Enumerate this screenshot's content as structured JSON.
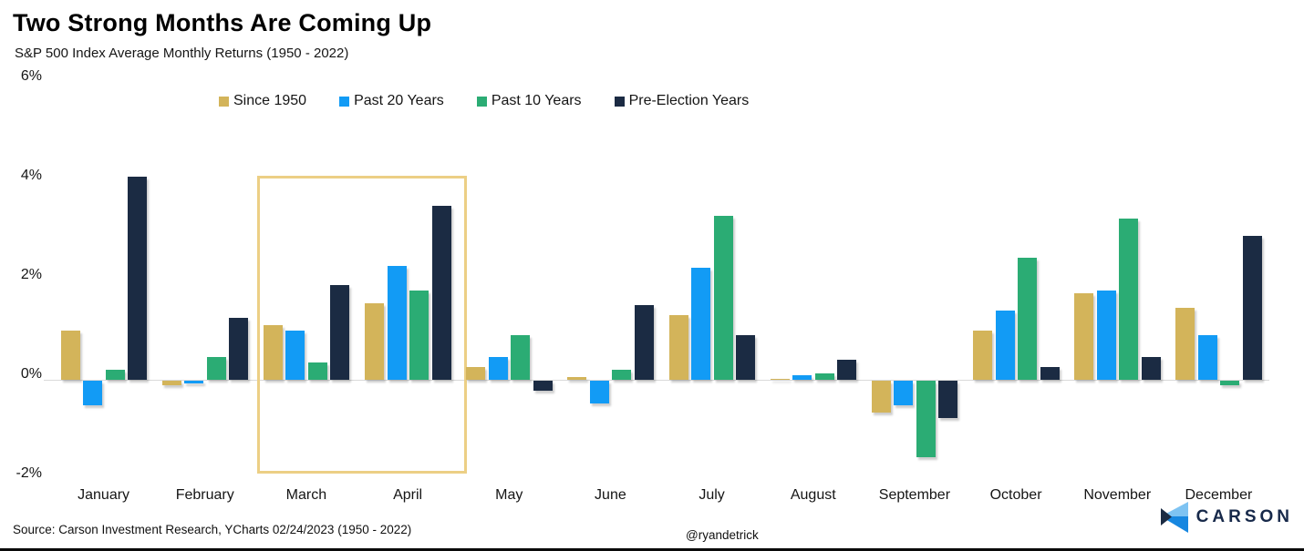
{
  "header": {
    "title": "Two Strong Months Are Coming Up",
    "subtitle": "S&P 500 Index Average Monthly Returns (1950 - 2022)"
  },
  "chart_data": {
    "type": "bar",
    "categories": [
      "January",
      "February",
      "March",
      "April",
      "May",
      "June",
      "July",
      "August",
      "September",
      "October",
      "November",
      "December"
    ],
    "series": [
      {
        "name": "Since 1950",
        "color": "#d3b45a",
        "values": [
          1.0,
          -0.1,
          1.1,
          1.55,
          0.25,
          0.05,
          1.3,
          0.02,
          -0.65,
          1.0,
          1.75,
          1.45
        ]
      },
      {
        "name": "Past 20 Years",
        "color": "#129bf5",
        "values": [
          -0.5,
          -0.05,
          1.0,
          2.3,
          0.45,
          -0.45,
          2.25,
          0.1,
          -0.5,
          1.4,
          1.8,
          0.9
        ]
      },
      {
        "name": "Past 10 Years",
        "color": "#2bac74",
        "values": [
          0.2,
          0.45,
          0.35,
          1.8,
          0.9,
          0.2,
          3.3,
          0.12,
          -1.55,
          2.45,
          3.25,
          -0.1
        ]
      },
      {
        "name": "Pre-Election Years",
        "color": "#1b2b43",
        "values": [
          4.1,
          1.25,
          1.9,
          3.5,
          -0.2,
          1.5,
          0.9,
          0.4,
          -0.75,
          0.25,
          0.45,
          2.9
        ]
      }
    ],
    "ylabel": "",
    "xlabel": "",
    "ylim": [
      -2,
      6
    ],
    "yticks": [
      {
        "label": "6%",
        "value": 6
      },
      {
        "label": "4%",
        "value": 4
      },
      {
        "label": "2%",
        "value": 2
      },
      {
        "label": "0%",
        "value": 0
      },
      {
        "label": "-2%",
        "value": -2
      }
    ],
    "grid": false,
    "legend_position": "top",
    "highlight": {
      "months": [
        "March",
        "April"
      ],
      "border_color": "#eccf85"
    },
    "zero_line_color": "#d9d9d9"
  },
  "footer": {
    "source": "Source: Carson Investment Research, YCharts 02/24/2023 (1950 - 2022)",
    "handle": "@ryandetrick",
    "logo_text": "CARSON",
    "logo_colors": {
      "light_blue": "#7ec3f2",
      "mid_blue": "#1787e0",
      "navy": "#1b2b43"
    }
  }
}
